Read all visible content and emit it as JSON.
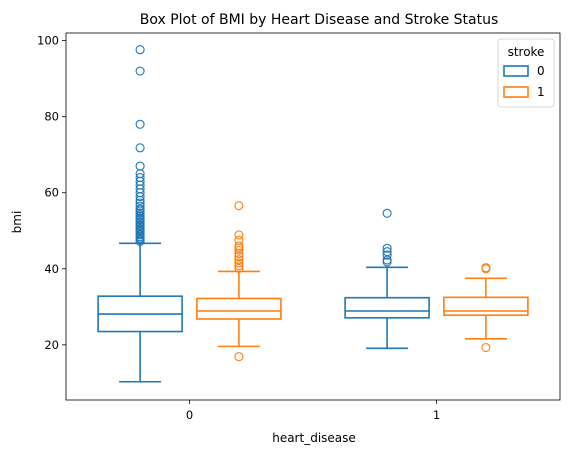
{
  "chart_data": {
    "type": "box",
    "title": "Box Plot of BMI by Heart Disease and Stroke Status",
    "xlabel": "heart_disease",
    "ylabel": "bmi",
    "categories": [
      "0",
      "1"
    ],
    "y_ticks": [
      20,
      40,
      60,
      80,
      100
    ],
    "ylim": [
      5.5,
      102
    ],
    "grid": false,
    "legend": {
      "title": "stroke",
      "placement": "top-right"
    },
    "series": [
      {
        "name": "0",
        "color": "#1f77b4",
        "boxes": [
          {
            "category": "0",
            "whisker_low": 10.3,
            "q1": 23.5,
            "median": 28.1,
            "q3": 32.8,
            "whisker_high": 46.7,
            "outliers": [
              47.2,
              47.6,
              48.0,
              48.4,
              48.9,
              49.3,
              49.8,
              50.2,
              50.6,
              51.1,
              51.5,
              52.0,
              52.4,
              52.9,
              53.3,
              53.8,
              54.2,
              54.7,
              55.2,
              55.7,
              56.5,
              57.3,
              58.0,
              59.0,
              60.0,
              61.0,
              62.0,
              63.0,
              64.0,
              65.0,
              67.0,
              71.8,
              78.0,
              92.0,
              97.6
            ]
          },
          {
            "category": "1",
            "whisker_low": 19.1,
            "q1": 27.1,
            "median": 28.9,
            "q3": 32.4,
            "whisker_high": 40.4,
            "outliers": [
              41.8,
              42.3,
              43.6,
              44.5,
              45.4,
              54.6
            ]
          }
        ]
      },
      {
        "name": "1",
        "color": "#ff7f0e",
        "boxes": [
          {
            "category": "0",
            "whisker_low": 19.6,
            "q1": 26.8,
            "median": 28.9,
            "q3": 32.2,
            "whisker_high": 39.3,
            "outliers": [
              16.9,
              40.1,
              40.8,
              41.5,
              42.4,
              43.2,
              44.0,
              44.9,
              45.5,
              46.0,
              47.5,
              48.9,
              56.6
            ]
          },
          {
            "category": "1",
            "whisker_low": 21.6,
            "q1": 27.8,
            "median": 28.9,
            "q3": 32.5,
            "whisker_high": 37.5,
            "outliers": [
              19.3,
              40.0,
              40.3
            ]
          }
        ]
      }
    ]
  }
}
